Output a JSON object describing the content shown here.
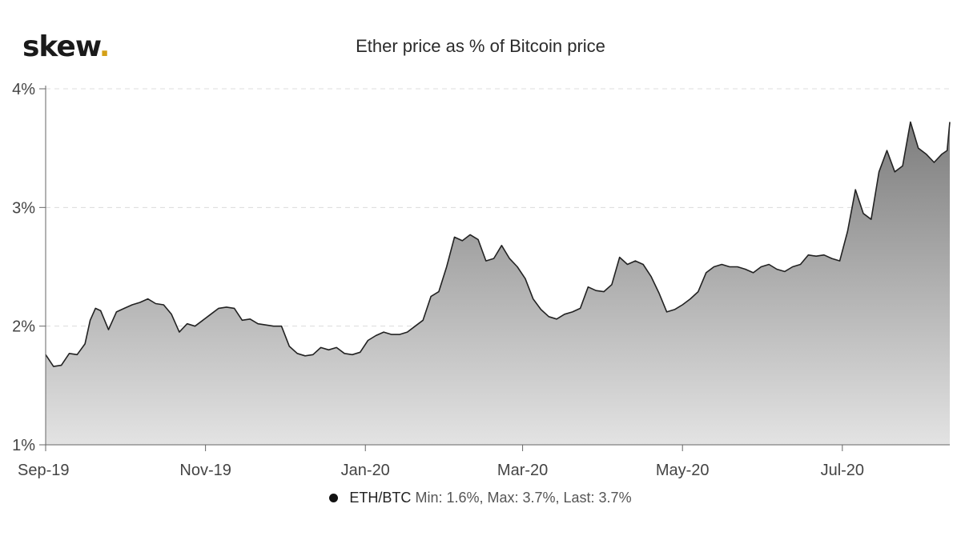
{
  "logo": {
    "text": "skew",
    "dot": "."
  },
  "chart_data": {
    "type": "area",
    "title": "Ether price as % of Bitcoin price",
    "xlabel": "",
    "ylabel": "",
    "ylim": [
      1,
      4
    ],
    "y_ticks": [
      1,
      2,
      3,
      4
    ],
    "y_tick_labels": [
      "1%",
      "2%",
      "3%",
      "4%"
    ],
    "x_range": [
      "2019-09-01",
      "2020-08-11"
    ],
    "x_ticks": [
      "2019-09-01",
      "2019-11-01",
      "2020-01-01",
      "2020-03-01",
      "2020-05-01",
      "2020-07-01"
    ],
    "x_tick_labels": [
      "Sep-19",
      "Nov-19",
      "Jan-20",
      "Mar-20",
      "May-20",
      "Jul-20"
    ],
    "grid": "horizontal dashed",
    "fill": "gray gradient",
    "series": [
      {
        "name": "ETH/BTC",
        "color": "#222222",
        "x": [
          "2019-09-01",
          "2019-09-04",
          "2019-09-07",
          "2019-09-10",
          "2019-09-13",
          "2019-09-16",
          "2019-09-18",
          "2019-09-20",
          "2019-09-22",
          "2019-09-25",
          "2019-09-28",
          "2019-10-01",
          "2019-10-04",
          "2019-10-07",
          "2019-10-10",
          "2019-10-13",
          "2019-10-16",
          "2019-10-19",
          "2019-10-22",
          "2019-10-25",
          "2019-10-28",
          "2019-10-31",
          "2019-11-03",
          "2019-11-06",
          "2019-11-09",
          "2019-11-12",
          "2019-11-15",
          "2019-11-18",
          "2019-11-21",
          "2019-11-24",
          "2019-11-27",
          "2019-11-30",
          "2019-12-03",
          "2019-12-06",
          "2019-12-09",
          "2019-12-12",
          "2019-12-15",
          "2019-12-18",
          "2019-12-21",
          "2019-12-24",
          "2019-12-27",
          "2019-12-30",
          "2020-01-02",
          "2020-01-05",
          "2020-01-08",
          "2020-01-11",
          "2020-01-14",
          "2020-01-17",
          "2020-01-20",
          "2020-01-23",
          "2020-01-26",
          "2020-01-29",
          "2020-02-01",
          "2020-02-04",
          "2020-02-07",
          "2020-02-10",
          "2020-02-13",
          "2020-02-16",
          "2020-02-19",
          "2020-02-22",
          "2020-02-25",
          "2020-02-28",
          "2020-03-02",
          "2020-03-05",
          "2020-03-08",
          "2020-03-11",
          "2020-03-14",
          "2020-03-17",
          "2020-03-20",
          "2020-03-23",
          "2020-03-26",
          "2020-03-29",
          "2020-04-01",
          "2020-04-04",
          "2020-04-07",
          "2020-04-10",
          "2020-04-13",
          "2020-04-16",
          "2020-04-19",
          "2020-04-22",
          "2020-04-25",
          "2020-04-28",
          "2020-05-01",
          "2020-05-04",
          "2020-05-07",
          "2020-05-10",
          "2020-05-13",
          "2020-05-16",
          "2020-05-19",
          "2020-05-22",
          "2020-05-25",
          "2020-05-28",
          "2020-05-31",
          "2020-06-03",
          "2020-06-06",
          "2020-06-09",
          "2020-06-12",
          "2020-06-15",
          "2020-06-18",
          "2020-06-21",
          "2020-06-24",
          "2020-06-27",
          "2020-06-30",
          "2020-07-03",
          "2020-07-06",
          "2020-07-09",
          "2020-07-12",
          "2020-07-15",
          "2020-07-18",
          "2020-07-21",
          "2020-07-24",
          "2020-07-27",
          "2020-07-30",
          "2020-08-02",
          "2020-08-05",
          "2020-08-08",
          "2020-08-10",
          "2020-08-11"
        ],
        "values": [
          1.76,
          1.66,
          1.67,
          1.77,
          1.76,
          1.85,
          2.05,
          2.15,
          2.13,
          1.97,
          2.12,
          2.15,
          2.18,
          2.2,
          2.23,
          2.19,
          2.18,
          2.1,
          1.95,
          2.02,
          2.0,
          2.05,
          2.1,
          2.15,
          2.16,
          2.15,
          2.05,
          2.06,
          2.02,
          2.01,
          2.0,
          2.0,
          1.83,
          1.77,
          1.75,
          1.76,
          1.82,
          1.8,
          1.82,
          1.77,
          1.76,
          1.78,
          1.88,
          1.92,
          1.95,
          1.93,
          1.93,
          1.95,
          2.0,
          2.05,
          2.25,
          2.29,
          2.5,
          2.75,
          2.72,
          2.77,
          2.73,
          2.55,
          2.57,
          2.68,
          2.57,
          2.5,
          2.4,
          2.23,
          2.14,
          2.08,
          2.06,
          2.1,
          2.12,
          2.15,
          2.33,
          2.3,
          2.29,
          2.35,
          2.58,
          2.52,
          2.55,
          2.52,
          2.42,
          2.28,
          2.12,
          2.14,
          2.18,
          2.23,
          2.29,
          2.45,
          2.5,
          2.52,
          2.5,
          2.5,
          2.48,
          2.45,
          2.5,
          2.52,
          2.48,
          2.46,
          2.5,
          2.52,
          2.6,
          2.59,
          2.6,
          2.57,
          2.55,
          2.8,
          3.15,
          2.95,
          2.9,
          3.3,
          3.48,
          3.3,
          3.35,
          3.72,
          3.5,
          3.45,
          3.38,
          3.45,
          3.48,
          3.72
        ]
      }
    ]
  },
  "legend": {
    "series_name": "ETH/BTC",
    "stats": "Min: 1.6%, Max: 3.7%, Last: 3.7%"
  }
}
